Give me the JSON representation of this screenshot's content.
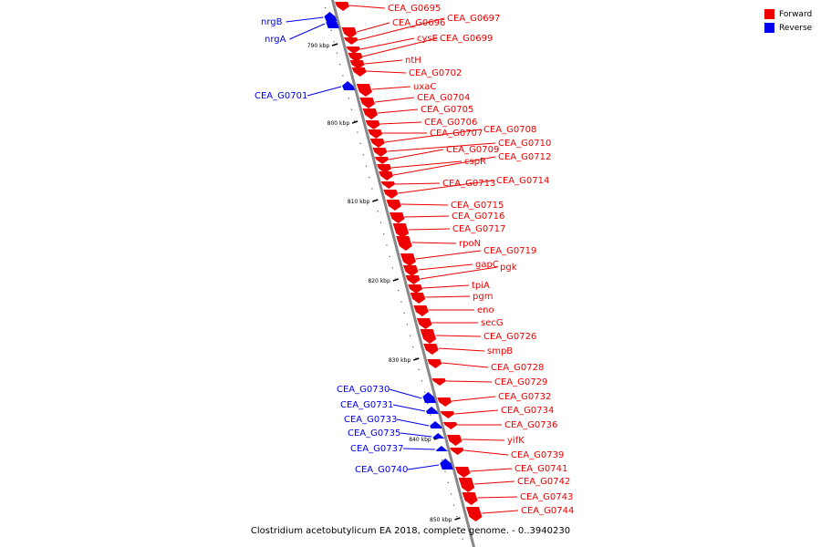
{
  "legend": {
    "forward_label": "Forward",
    "reverse_label": "Reverse",
    "forward_color": "#ee0000",
    "reverse_color": "#0000ee"
  },
  "caption": "Clostridium acetobutylicum EA 2018, complete genome. - 0..3940230",
  "ticks": [
    "790 kbp",
    "800 kbp",
    "810 kbp",
    "820 kbp",
    "830 kbp",
    "840 kbp",
    "850 kbp"
  ],
  "genes": [
    {
      "label": "nrgB",
      "strand": "reverse"
    },
    {
      "label": "nrgA",
      "strand": "reverse"
    },
    {
      "label": "CEA_G0695",
      "strand": "forward"
    },
    {
      "label": "CEA_G0696",
      "strand": "forward"
    },
    {
      "label": "CEA_G0697",
      "strand": "forward"
    },
    {
      "label": "cysE",
      "strand": "forward"
    },
    {
      "label": "CEA_G0699",
      "strand": "forward"
    },
    {
      "label": "ntH",
      "strand": "forward"
    },
    {
      "label": "CEA_G0702",
      "strand": "forward"
    },
    {
      "label": "uxaC",
      "strand": "forward"
    },
    {
      "label": "CEA_G0701",
      "strand": "reverse"
    },
    {
      "label": "CEA_G0704",
      "strand": "forward"
    },
    {
      "label": "CEA_G0705",
      "strand": "forward"
    },
    {
      "label": "CEA_G0706",
      "strand": "forward"
    },
    {
      "label": "CEA_G0707",
      "strand": "forward"
    },
    {
      "label": "CEA_G0708",
      "strand": "forward"
    },
    {
      "label": "CEA_G0710",
      "strand": "forward"
    },
    {
      "label": "CEA_G0709",
      "strand": "forward"
    },
    {
      "label": "cspR",
      "strand": "forward"
    },
    {
      "label": "CEA_G0712",
      "strand": "forward"
    },
    {
      "label": "CEA_G0713",
      "strand": "forward"
    },
    {
      "label": "CEA_G0714",
      "strand": "forward"
    },
    {
      "label": "CEA_G0715",
      "strand": "forward"
    },
    {
      "label": "CEA_G0716",
      "strand": "forward"
    },
    {
      "label": "CEA_G0717",
      "strand": "forward"
    },
    {
      "label": "rpoN",
      "strand": "forward"
    },
    {
      "label": "CEA_G0719",
      "strand": "forward"
    },
    {
      "label": "gapC",
      "strand": "forward"
    },
    {
      "label": "pgk",
      "strand": "forward"
    },
    {
      "label": "tpiA",
      "strand": "forward"
    },
    {
      "label": "pgm",
      "strand": "forward"
    },
    {
      "label": "eno",
      "strand": "forward"
    },
    {
      "label": "secG",
      "strand": "forward"
    },
    {
      "label": "CEA_G0726",
      "strand": "forward"
    },
    {
      "label": "smpB",
      "strand": "forward"
    },
    {
      "label": "CEA_G0728",
      "strand": "forward"
    },
    {
      "label": "CEA_G0729",
      "strand": "forward"
    },
    {
      "label": "CEA_G0730",
      "strand": "reverse"
    },
    {
      "label": "CEA_G0732",
      "strand": "forward"
    },
    {
      "label": "CEA_G0731",
      "strand": "reverse"
    },
    {
      "label": "CEA_G0734",
      "strand": "forward"
    },
    {
      "label": "CEA_G0733",
      "strand": "reverse"
    },
    {
      "label": "CEA_G0736",
      "strand": "forward"
    },
    {
      "label": "CEA_G0735",
      "strand": "reverse"
    },
    {
      "label": "yifK",
      "strand": "forward"
    },
    {
      "label": "CEA_G0737",
      "strand": "reverse"
    },
    {
      "label": "CEA_G0739",
      "strand": "forward"
    },
    {
      "label": "CEA_G0741",
      "strand": "forward"
    },
    {
      "label": "CEA_G0740",
      "strand": "reverse"
    },
    {
      "label": "CEA_G0742",
      "strand": "forward"
    },
    {
      "label": "CEA_G0743",
      "strand": "forward"
    },
    {
      "label": "CEA_G0744",
      "strand": "forward"
    }
  ]
}
